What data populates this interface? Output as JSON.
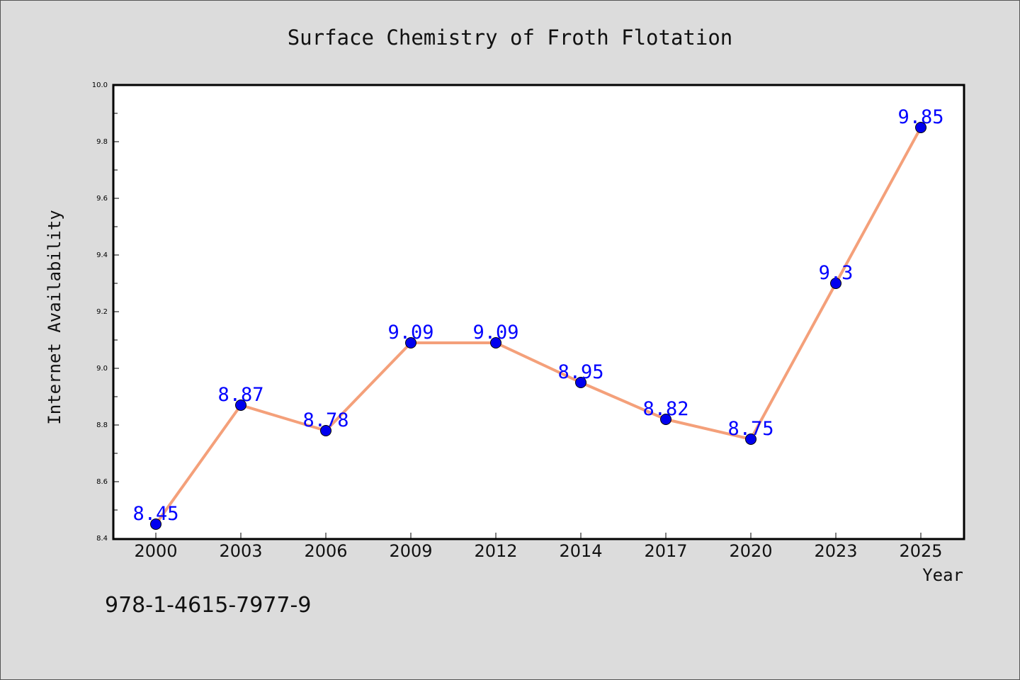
{
  "chart_data": {
    "type": "line",
    "title": "Surface Chemistry of Froth Flotation",
    "xlabel": "Year",
    "ylabel": "Internet Availability",
    "categories": [
      "2000",
      "2003",
      "2006",
      "2009",
      "2012",
      "2014",
      "2017",
      "2020",
      "2023",
      "2025"
    ],
    "series": [
      {
        "values": [
          8.45,
          8.87,
          8.78,
          9.09,
          9.09,
          8.95,
          8.82,
          8.75,
          9.3,
          9.85
        ],
        "data_labels": [
          "8.45",
          "8.87",
          "8.78",
          "9.09",
          "9.09",
          "8.95",
          "8.82",
          "8.75",
          "9.3",
          "9.85"
        ],
        "line_color": "#f4a07a",
        "marker_color": "#0000ee",
        "label_color": "#0000ff"
      }
    ],
    "ylim": [
      8.4,
      10.0
    ],
    "yticks": [
      "8.4",
      "8.6",
      "8.8",
      "9.0",
      "9.2",
      "9.4",
      "9.6",
      "9.8",
      "10.0"
    ],
    "grid": false,
    "legend": "none"
  },
  "annotation": {
    "isbn": "978-1-4615-7977-9"
  },
  "colors": {
    "background": "#dcdcdc",
    "plot_background": "#ffffff"
  }
}
